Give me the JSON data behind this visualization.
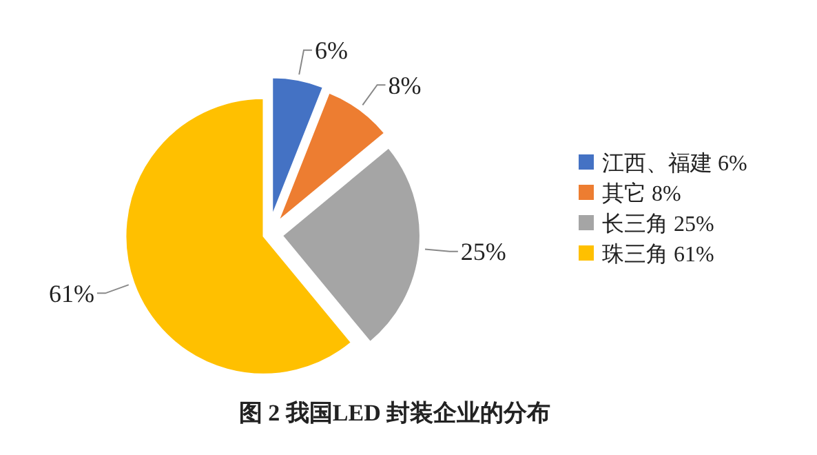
{
  "chart_data": {
    "type": "pie",
    "title": "图 2  我国LED 封装企业的分布",
    "categories": [
      "江西、福建 6%",
      "其它 8%",
      "长三角 25%",
      "珠三角 61%"
    ],
    "values": [
      6,
      8,
      25,
      61
    ],
    "colors": [
      "#4472c4",
      "#ed7d31",
      "#a5a5a5",
      "#ffc000"
    ],
    "value_labels": [
      "6%",
      "8%",
      "25%",
      "61%"
    ],
    "legend": "right"
  }
}
